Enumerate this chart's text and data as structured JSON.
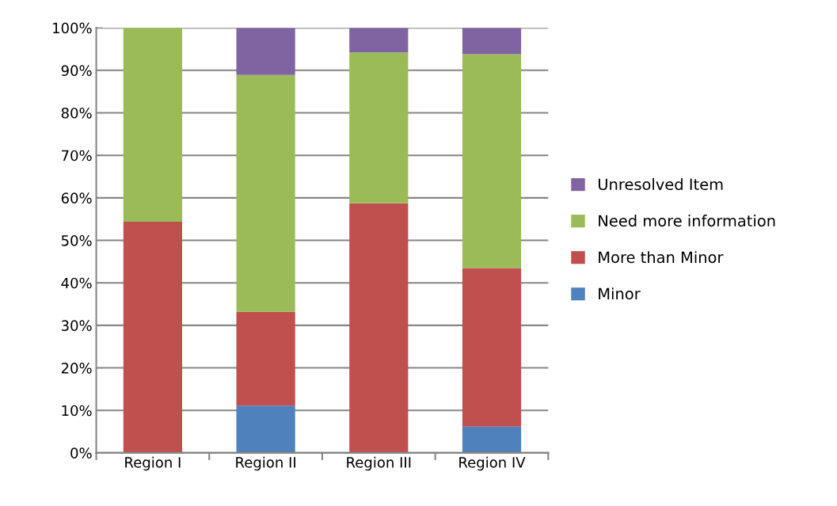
{
  "chart_data": {
    "type": "bar",
    "stacked": true,
    "categories": [
      "Region I",
      "Region II",
      "Region III",
      "Region IV"
    ],
    "series": [
      {
        "name": "Minor",
        "color": "#4f81bd",
        "values": [
          0,
          11.1,
          0,
          6.2
        ]
      },
      {
        "name": "More than Minor",
        "color": "#c0504d",
        "values": [
          54.4,
          22.1,
          58.7,
          37.3
        ]
      },
      {
        "name": "Need more information",
        "color": "#9bbb59",
        "values": [
          45.6,
          55.7,
          35.5,
          50.3
        ]
      },
      {
        "name": "Unresolved Item",
        "color": "#8064a2",
        "values": [
          0,
          11.1,
          5.8,
          6.2
        ]
      }
    ],
    "ylim": [
      0,
      100
    ],
    "yticks": [
      {
        "value": 0,
        "label": "0%"
      },
      {
        "value": 10,
        "label": "10%"
      },
      {
        "value": 20,
        "label": "20%"
      },
      {
        "value": 30,
        "label": "30%"
      },
      {
        "value": 40,
        "label": "40%"
      },
      {
        "value": 50,
        "label": "50%"
      },
      {
        "value": 60,
        "label": "60%"
      },
      {
        "value": 70,
        "label": "70%"
      },
      {
        "value": 80,
        "label": "80%"
      },
      {
        "value": 90,
        "label": "90%"
      },
      {
        "value": 100,
        "label": "100%"
      }
    ],
    "grid": "y",
    "legend": "right"
  }
}
